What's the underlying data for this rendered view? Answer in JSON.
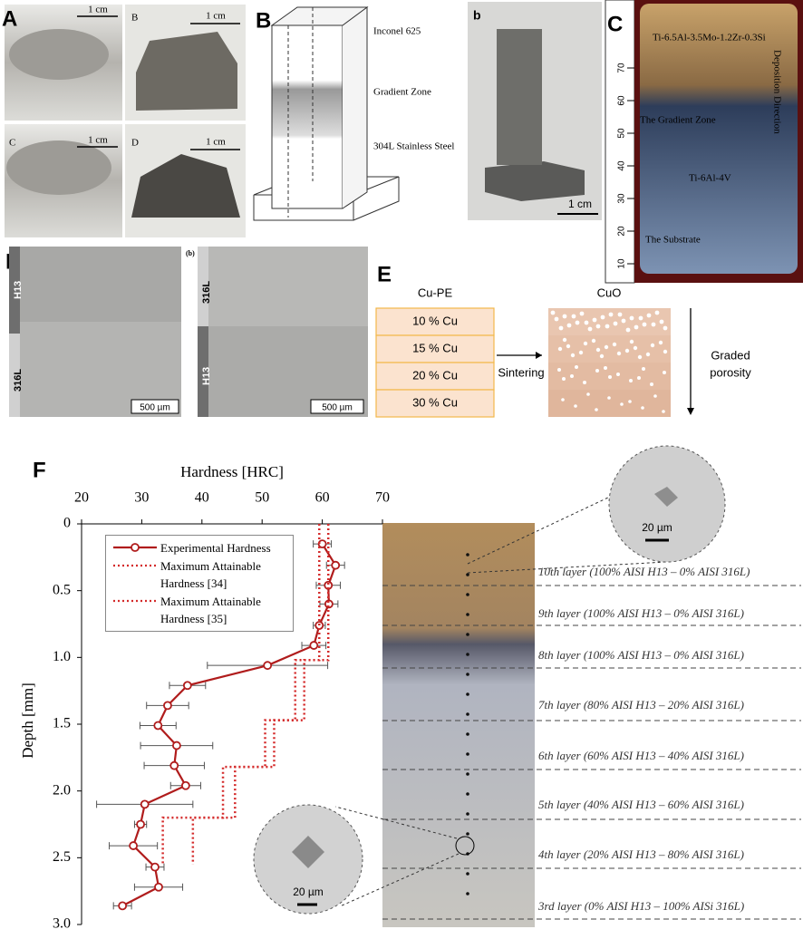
{
  "panels": {
    "A": {
      "label": "A",
      "sub": [
        "B",
        "C",
        "D"
      ],
      "scale": [
        "1 cm",
        "1 cm",
        "1 cm",
        "1 cm"
      ]
    },
    "B": {
      "label": "B",
      "zones": [
        "Inconel 625",
        "Gradient Zone",
        "304L Stainless Steel"
      ]
    },
    "b": {
      "label": "b",
      "scale": "1 cm"
    },
    "C": {
      "label": "C",
      "texts": [
        "Ti-6.5Al-3.5Mo-1.2Zr-0.3Si",
        "The Gradient Zone",
        "Ti-6Al-4V",
        "The Substrate",
        "Deposition Direction"
      ],
      "ruler": [
        "10",
        "20",
        "30",
        "40",
        "50",
        "60",
        "70"
      ]
    },
    "D": {
      "label": "D",
      "sublabel": "(b)",
      "left": [
        "H13",
        "316L"
      ],
      "right": [
        "316L",
        "H13"
      ],
      "scale": [
        "500 µm",
        "500 µm"
      ]
    },
    "E": {
      "label": "E",
      "left_title": "Cu-PE",
      "rows": [
        "10 % Cu",
        "15 % Cu",
        "20 % Cu",
        "30 % Cu"
      ],
      "process": "Sintering",
      "right_title": "CuO",
      "arrow_label": [
        "Graded",
        "porosity"
      ]
    },
    "F": {
      "label": "F",
      "inset_scale": [
        "20 µm",
        "20 µm"
      ],
      "layers": [
        "10th layer (100% AISI H13 – 0% AISI 316L)",
        "9th layer (100% AISI H13 – 0% AISI 316L)",
        "8th layer (100% AISI H13 – 0% AISI 316L)",
        "7th layer (80% AISI H13 – 20% AISI 316L)",
        "6th layer (60% AISI H13 – 40% AISI 316L)",
        "5th layer (40% AISI H13 – 60% AISI 316L)",
        "4th layer (20% AISI H13 – 80% AISI 316L)",
        "3rd layer (0% AISI H13 – 100% AISi 316L)"
      ]
    }
  },
  "chart_data": {
    "type": "line",
    "x_label": "Hardness [HRC]",
    "y_label": "Depth [mm]",
    "xlim": [
      20,
      70
    ],
    "xticks": [
      20,
      30,
      40,
      50,
      60,
      70
    ],
    "ylim": [
      0,
      3
    ],
    "y_inverted": true,
    "yticks": [
      0,
      0.5,
      {
        "value": 1,
        "label": "1.0"
      },
      1.5,
      {
        "value": 2,
        "label": "2.0"
      },
      2.5,
      {
        "value": 3,
        "label": "3.0"
      }
    ],
    "grid": false,
    "series": [
      {
        "name": "Experimental Hardness",
        "color": "#b01c1c",
        "style": "solid-markers",
        "x": [
          60.0,
          62.2,
          61.0,
          61.1,
          59.5,
          58.6,
          50.9,
          37.6,
          34.3,
          32.7,
          35.8,
          35.4,
          37.3,
          30.5,
          29.8,
          28.6,
          32.2,
          32.8,
          26.8
        ],
        "errors": [
          1.5,
          1.5,
          2,
          1.5,
          1,
          2,
          10,
          3,
          3.5,
          3,
          6,
          5,
          2.5,
          8,
          1,
          4,
          1.5,
          4,
          1.5
        ],
        "values": [
          0.15,
          0.31,
          0.46,
          0.6,
          0.76,
          0.91,
          1.06,
          1.21,
          1.36,
          1.51,
          1.66,
          1.81,
          1.96,
          2.1,
          2.25,
          2.41,
          2.57,
          2.72,
          2.86
        ]
      },
      {
        "name": "Maximum Attainable Hardness [34]",
        "color": "#d42a2a",
        "style": "dotted",
        "x": [
          59.5,
          59.5,
          55.5,
          55.5,
          50.5,
          50.5,
          43.5,
          43.5,
          33.5,
          33.5
        ],
        "values": [
          0,
          1.02,
          1.02,
          1.47,
          1.47,
          1.82,
          1.82,
          2.2,
          2.2,
          2.55
        ]
      },
      {
        "name": "Maximum Attainable Hardness [35]",
        "color": "#d42a2a",
        "style": "dotted",
        "x": [
          61,
          61,
          57,
          57,
          52,
          52,
          45.5,
          45.5,
          38.5,
          38.5
        ],
        "values": [
          0,
          1.02,
          1.02,
          1.47,
          1.47,
          1.82,
          1.82,
          2.2,
          2.2,
          2.55
        ]
      }
    ]
  }
}
